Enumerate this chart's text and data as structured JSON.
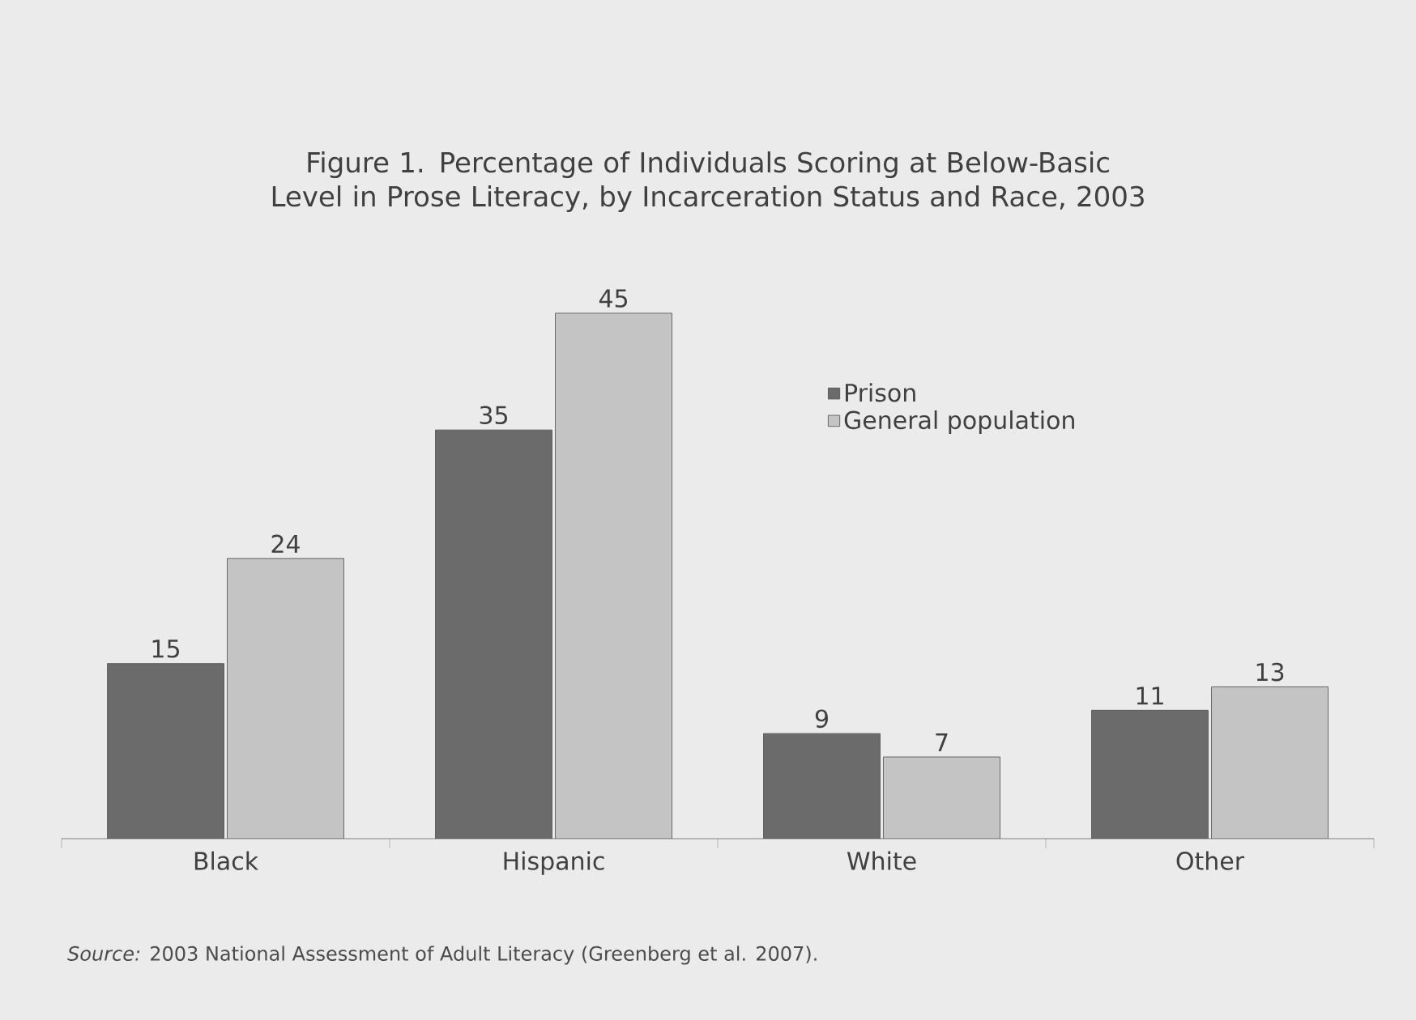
{
  "chart_data": {
    "type": "bar",
    "title": "Figure 1. Percentage of Individuals Scoring at Below-Basic Level in Prose Literacy, by Incarceration Status and Race, 2003",
    "categories": [
      "Black",
      "Hispanic",
      "White",
      "Other"
    ],
    "series": [
      {
        "name": "Prison",
        "color": "#6b6b6b",
        "values": [
          15,
          35,
          9,
          11
        ]
      },
      {
        "name": "General population",
        "color": "#c4c4c4",
        "values": [
          24,
          45,
          7,
          13
        ]
      }
    ],
    "data_labels": true,
    "legend": "top right",
    "annotations": [
      "*Source:* 2003 National Assessment of Adult Literacy (Greenberg et al. 2007)."
    ]
  }
}
